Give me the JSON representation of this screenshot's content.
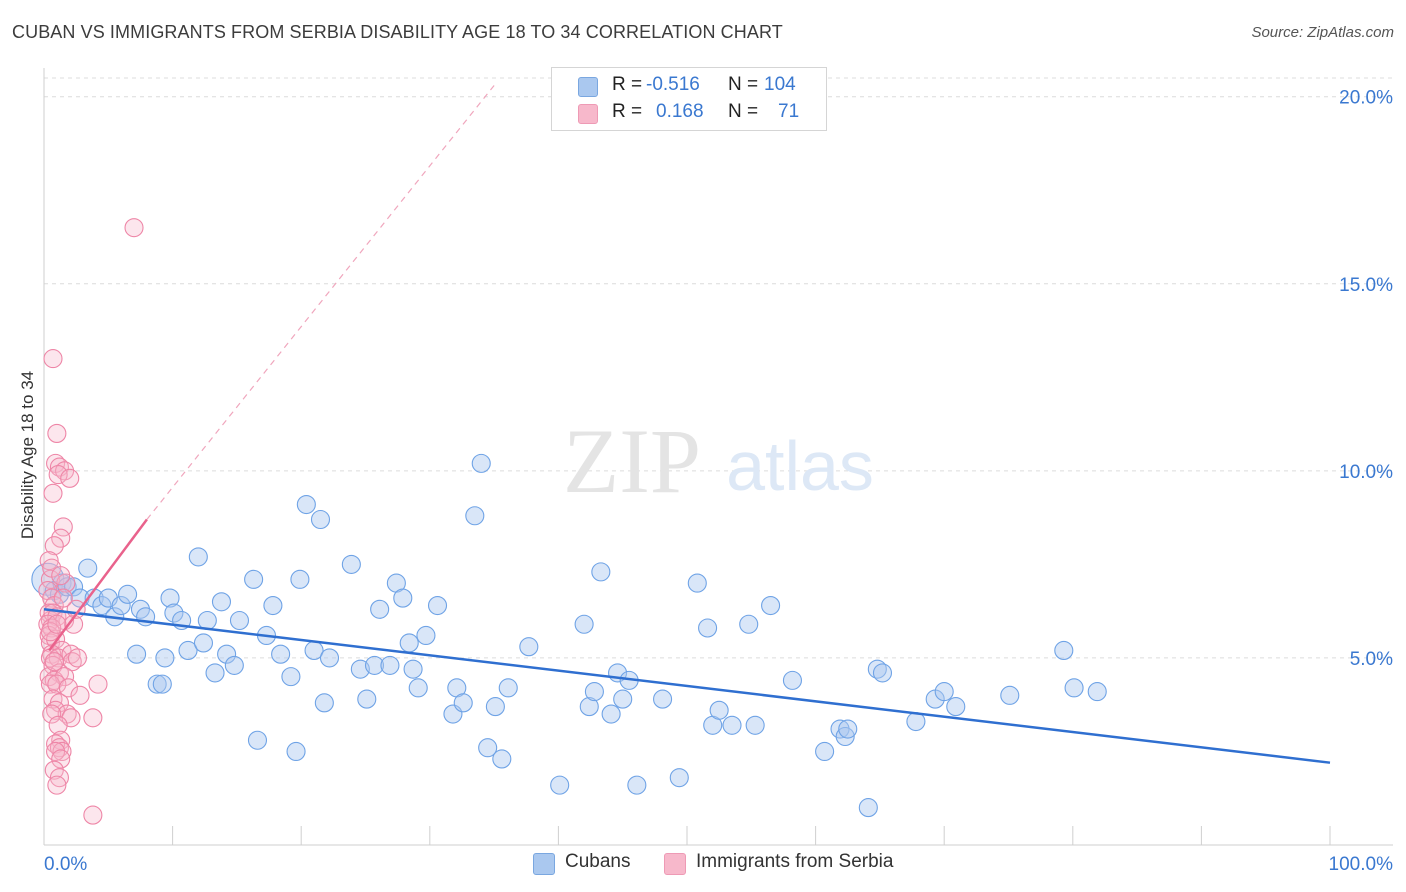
{
  "title": "CUBAN VS IMMIGRANTS FROM SERBIA DISABILITY AGE 18 TO 34 CORRELATION CHART",
  "source": "Source: ZipAtlas.com",
  "watermark": {
    "zip": "ZIP",
    "atlas": "atlas"
  },
  "legend": {
    "rows": [
      {
        "r_label": "R =",
        "r_value": "-0.516",
        "n_label": "N =",
        "n_value": "104",
        "color": "#aac8ef"
      },
      {
        "r_label": "R =",
        "r_value": "0.168",
        "n_label": "N =",
        "n_value": "71",
        "color": "#f7b8cb"
      }
    ]
  },
  "bottom_legend": [
    {
      "label": "Cubans",
      "color": "#aac8ef"
    },
    {
      "label": "Immigrants from Serbia",
      "color": "#f7b8cb"
    }
  ],
  "chart_data": {
    "type": "scatter",
    "title": "CUBAN VS IMMIGRANTS FROM SERBIA DISABILITY AGE 18 TO 34 CORRELATION CHART",
    "xlabel": "",
    "ylabel": "Disability Age 18 to 34",
    "xlim": [
      0,
      100
    ],
    "ylim": [
      0,
      20.5
    ],
    "x_tick_labels": [
      "0.0%",
      "100.0%"
    ],
    "y_ticks": [
      5,
      10,
      15,
      20
    ],
    "y_tick_labels": [
      "5.0%",
      "10.0%",
      "15.0%",
      "20.0%"
    ],
    "grid": "horizontal dashed",
    "legend_position": "top-center",
    "series": [
      {
        "name": "Cubans",
        "color": "#6fa3e6",
        "trend": {
          "x": [
            0,
            100
          ],
          "y": [
            6.3,
            2.2
          ]
        },
        "points": [
          [
            0.3,
            7.1
          ],
          [
            0.8,
            6.8
          ],
          [
            1.2,
            6.7
          ],
          [
            1.4,
            7.0
          ],
          [
            1.8,
            6.9
          ],
          [
            2.3,
            6.9
          ],
          [
            2.8,
            6.6
          ],
          [
            3.4,
            7.4
          ],
          [
            3.9,
            6.6
          ],
          [
            4.5,
            6.4
          ],
          [
            5.0,
            6.6
          ],
          [
            5.5,
            6.1
          ],
          [
            6.0,
            6.4
          ],
          [
            6.5,
            6.7
          ],
          [
            7.2,
            5.1
          ],
          [
            7.5,
            6.3
          ],
          [
            7.9,
            6.1
          ],
          [
            8.8,
            4.3
          ],
          [
            9.2,
            4.3
          ],
          [
            9.4,
            5.0
          ],
          [
            9.8,
            6.6
          ],
          [
            10.1,
            6.2
          ],
          [
            10.7,
            6.0
          ],
          [
            11.2,
            5.2
          ],
          [
            12.0,
            7.7
          ],
          [
            12.4,
            5.4
          ],
          [
            12.7,
            6.0
          ],
          [
            13.3,
            4.6
          ],
          [
            13.8,
            6.5
          ],
          [
            14.2,
            5.1
          ],
          [
            14.8,
            4.8
          ],
          [
            15.2,
            6.0
          ],
          [
            16.3,
            7.1
          ],
          [
            16.6,
            2.8
          ],
          [
            17.3,
            5.6
          ],
          [
            17.8,
            6.4
          ],
          [
            18.4,
            5.1
          ],
          [
            19.2,
            4.5
          ],
          [
            19.6,
            2.5
          ],
          [
            19.9,
            7.1
          ],
          [
            20.4,
            9.1
          ],
          [
            21.0,
            5.2
          ],
          [
            21.5,
            8.7
          ],
          [
            21.8,
            3.8
          ],
          [
            22.2,
            5.0
          ],
          [
            23.9,
            7.5
          ],
          [
            24.6,
            4.7
          ],
          [
            25.1,
            3.9
          ],
          [
            25.7,
            4.8
          ],
          [
            26.1,
            6.3
          ],
          [
            26.9,
            4.8
          ],
          [
            27.4,
            7.0
          ],
          [
            27.9,
            6.6
          ],
          [
            28.4,
            5.4
          ],
          [
            28.7,
            4.7
          ],
          [
            29.1,
            4.2
          ],
          [
            29.7,
            5.6
          ],
          [
            30.6,
            6.4
          ],
          [
            31.8,
            3.5
          ],
          [
            32.1,
            4.2
          ],
          [
            32.6,
            3.8
          ],
          [
            33.5,
            8.8
          ],
          [
            34.0,
            10.2
          ],
          [
            34.5,
            2.6
          ],
          [
            35.1,
            3.7
          ],
          [
            35.6,
            2.3
          ],
          [
            36.1,
            4.2
          ],
          [
            37.7,
            5.3
          ],
          [
            40.1,
            1.6
          ],
          [
            42.0,
            5.9
          ],
          [
            42.4,
            3.7
          ],
          [
            42.8,
            4.1
          ],
          [
            43.3,
            7.3
          ],
          [
            44.1,
            3.5
          ],
          [
            44.6,
            4.6
          ],
          [
            45.0,
            3.9
          ],
          [
            45.5,
            4.4
          ],
          [
            46.1,
            1.6
          ],
          [
            48.1,
            3.9
          ],
          [
            49.4,
            1.8
          ],
          [
            50.8,
            7.0
          ],
          [
            51.6,
            5.8
          ],
          [
            52.0,
            3.2
          ],
          [
            52.5,
            3.6
          ],
          [
            53.5,
            3.2
          ],
          [
            54.8,
            5.9
          ],
          [
            55.3,
            3.2
          ],
          [
            56.5,
            6.4
          ],
          [
            58.2,
            4.4
          ],
          [
            60.7,
            2.5
          ],
          [
            61.9,
            3.1
          ],
          [
            62.3,
            2.9
          ],
          [
            62.5,
            3.1
          ],
          [
            64.1,
            1.0
          ],
          [
            64.8,
            4.7
          ],
          [
            65.2,
            4.6
          ],
          [
            67.8,
            3.3
          ],
          [
            69.3,
            3.9
          ],
          [
            70.0,
            4.1
          ],
          [
            70.9,
            3.7
          ],
          [
            75.1,
            4.0
          ],
          [
            79.3,
            5.2
          ],
          [
            80.1,
            4.2
          ],
          [
            81.9,
            4.1
          ]
        ]
      },
      {
        "name": "Immigrants from Serbia",
        "color": "#ee86a7",
        "trend": {
          "x": [
            0.4,
            8.0
          ],
          "y": [
            5.2,
            8.7
          ]
        },
        "trend_extension": {
          "x": [
            8.0,
            35.0
          ],
          "y": [
            8.7,
            20.3
          ]
        },
        "points": [
          [
            7.0,
            16.5
          ],
          [
            0.7,
            13.0
          ],
          [
            1.0,
            11.0
          ],
          [
            0.9,
            10.2
          ],
          [
            1.2,
            10.1
          ],
          [
            1.6,
            10.0
          ],
          [
            1.1,
            9.9
          ],
          [
            2.0,
            9.8
          ],
          [
            1.5,
            8.5
          ],
          [
            1.3,
            8.2
          ],
          [
            0.8,
            8.0
          ],
          [
            0.4,
            7.6
          ],
          [
            0.5,
            7.1
          ],
          [
            0.3,
            6.8
          ],
          [
            0.6,
            6.6
          ],
          [
            0.8,
            6.4
          ],
          [
            0.4,
            6.2
          ],
          [
            0.5,
            6.0
          ],
          [
            0.7,
            6.2
          ],
          [
            1.0,
            6.1
          ],
          [
            1.6,
            6.0
          ],
          [
            0.3,
            5.9
          ],
          [
            0.6,
            5.8
          ],
          [
            2.3,
            5.9
          ],
          [
            0.4,
            5.6
          ],
          [
            0.5,
            5.4
          ],
          [
            0.9,
            5.5
          ],
          [
            1.4,
            5.2
          ],
          [
            0.6,
            5.1
          ],
          [
            0.5,
            5.0
          ],
          [
            1.1,
            5.0
          ],
          [
            2.1,
            5.1
          ],
          [
            2.2,
            4.9
          ],
          [
            0.7,
            4.8
          ],
          [
            1.2,
            4.6
          ],
          [
            0.4,
            4.5
          ],
          [
            0.8,
            4.4
          ],
          [
            1.6,
            4.5
          ],
          [
            0.5,
            4.3
          ],
          [
            1.0,
            4.3
          ],
          [
            4.2,
            4.3
          ],
          [
            0.7,
            3.9
          ],
          [
            1.2,
            3.8
          ],
          [
            0.9,
            3.6
          ],
          [
            1.8,
            3.5
          ],
          [
            2.1,
            3.4
          ],
          [
            0.6,
            3.5
          ],
          [
            3.8,
            3.4
          ],
          [
            1.1,
            3.2
          ],
          [
            1.3,
            2.8
          ],
          [
            0.9,
            2.7
          ],
          [
            1.2,
            2.6
          ],
          [
            1.4,
            2.5
          ],
          [
            0.9,
            2.5
          ],
          [
            1.3,
            2.3
          ],
          [
            0.8,
            2.0
          ],
          [
            1.2,
            1.8
          ],
          [
            1.0,
            1.6
          ],
          [
            3.8,
            0.8
          ],
          [
            2.5,
            6.3
          ],
          [
            1.7,
            7.0
          ],
          [
            0.6,
            7.4
          ],
          [
            1.9,
            4.2
          ],
          [
            2.6,
            5.0
          ],
          [
            0.5,
            5.7
          ],
          [
            1.5,
            6.6
          ],
          [
            0.8,
            4.9
          ],
          [
            1.0,
            5.9
          ],
          [
            2.8,
            4.0
          ],
          [
            1.3,
            7.2
          ],
          [
            0.7,
            9.4
          ]
        ]
      }
    ]
  }
}
